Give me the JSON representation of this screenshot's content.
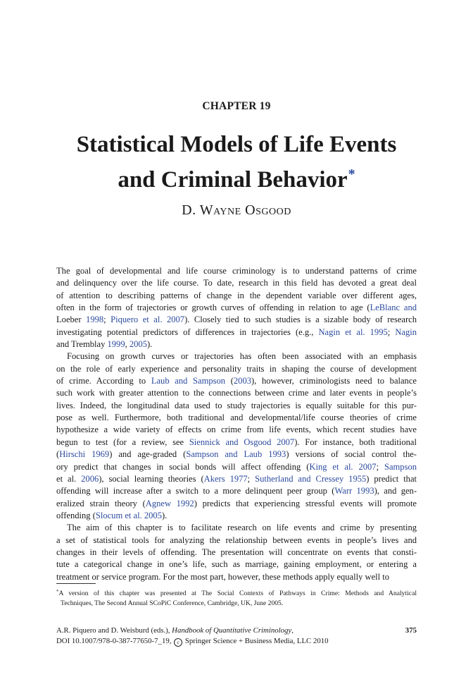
{
  "header": {
    "chapter_label": "CHAPTER 19",
    "title_line_1": "Statistical Models of Life Events",
    "title_line_2": "and Criminal Behavior",
    "title_footnote_marker": "*",
    "author": "D. Wayne Osgood"
  },
  "body": {
    "lines": [
      [
        "The goal of developmental and life course criminology is to understand patterns of crime"
      ],
      [
        "and delinquency over the life course. To date, research in this field has devoted a great deal"
      ],
      [
        "of attention to describing patterns of change in the dependent variable over different ages,"
      ],
      [
        "often in the form of trajectories or growth curves of offending in relation to age (",
        {
          "c": "LeBlanc and"
        }
      ],
      [
        "Loeber ",
        {
          "c": "1998"
        },
        "; ",
        {
          "c": "Piquero et al. 2007"
        },
        "). Closely tied to such studies is a sizable body of research"
      ],
      [
        "investigating potential predictors of differences in trajectories (e.g., ",
        {
          "c": "Nagin et al. 1995"
        },
        "; ",
        {
          "c": "Nagin"
        }
      ],
      [
        "and Tremblay ",
        {
          "c": "1999"
        },
        ", ",
        {
          "c": "2005"
        },
        ")."
      ],
      [
        "Focusing on growth curves or trajectories has often been associated with an emphasis"
      ],
      [
        "on the role of early experience and personality traits in shaping the course of development"
      ],
      [
        "of crime. According to ",
        {
          "c": "Laub and Sampson"
        },
        " (",
        {
          "c": "2003"
        },
        "), however, criminologists need to balance"
      ],
      [
        "such work with greater attention to the connections between crime and later events in people’s"
      ],
      [
        "lives. Indeed, the longitudinal data used to study trajectories is equally suitable for this pur-"
      ],
      [
        "pose as well. Furthermore, both traditional and developmental/life course theories of crime"
      ],
      [
        "hypothesize a wide variety of effects on crime from life events, which recent studies have"
      ],
      [
        "begun to test (for a review, see ",
        {
          "c": "Siennick and Osgood 2007"
        },
        "). For instance, both traditional"
      ],
      [
        "(",
        {
          "c": "Hirschi 1969"
        },
        ") and age-graded (",
        {
          "c": "Sampson and Laub 1993"
        },
        ") versions of social control the-"
      ],
      [
        "ory predict that changes in social bonds will affect offending (",
        {
          "c": "King et al. 2007"
        },
        "; ",
        {
          "c": "Sampson"
        }
      ],
      [
        "et al. ",
        {
          "c": "2006"
        },
        "), social learning theories (",
        {
          "c": "Akers 1977"
        },
        "; ",
        {
          "c": "Sutherland and Cressey 1955"
        },
        ") predict that"
      ],
      [
        "offending will increase after a switch to a more delinquent peer group (",
        {
          "c": "Warr 1993"
        },
        "), and gen-"
      ],
      [
        "eralized strain theory (",
        {
          "c": "Agnew 1992"
        },
        ") predicts that experiencing stressful events will promote"
      ],
      [
        "offending (",
        {
          "c": "Slocum et al. 2005"
        },
        ")."
      ],
      [
        "The aim of this chapter is to facilitate research on life events and crime by presenting"
      ],
      [
        "a set of statistical tools for analyzing the relationship between events in people’s lives and"
      ],
      [
        "changes in their levels of offending. The presentation will concentrate on events that consti-"
      ],
      [
        "tute a categorical change in one’s life, such as marriage, gaining employment, or entering a"
      ],
      [
        "treatment or service program. For the most part, however, these methods apply equally well to"
      ]
    ]
  },
  "footnote": {
    "marker": "*",
    "line_1": "A version of this chapter was presented at The Social Contexts of Pathways in Crime: Methods and Analytical",
    "line_2": "Techniques, The Second Annual SCoPiC Conference, Cambridge, UK, June 2005."
  },
  "footer": {
    "editors": "A.R. Piquero and D. Weisburd (eds.), ",
    "book_title": "Handbook of Quantitative Criminology",
    "book_title_suffix": ",",
    "page_number": "375",
    "doi": "DOI 10.1007/978-0-387-77650-7_19, ",
    "copyright_symbol": "c",
    "publisher": " Springer Science + Business Media, LLC 2010"
  },
  "colors": {
    "citation_link": "#2b4a9e",
    "text": "#1a1a1a"
  }
}
